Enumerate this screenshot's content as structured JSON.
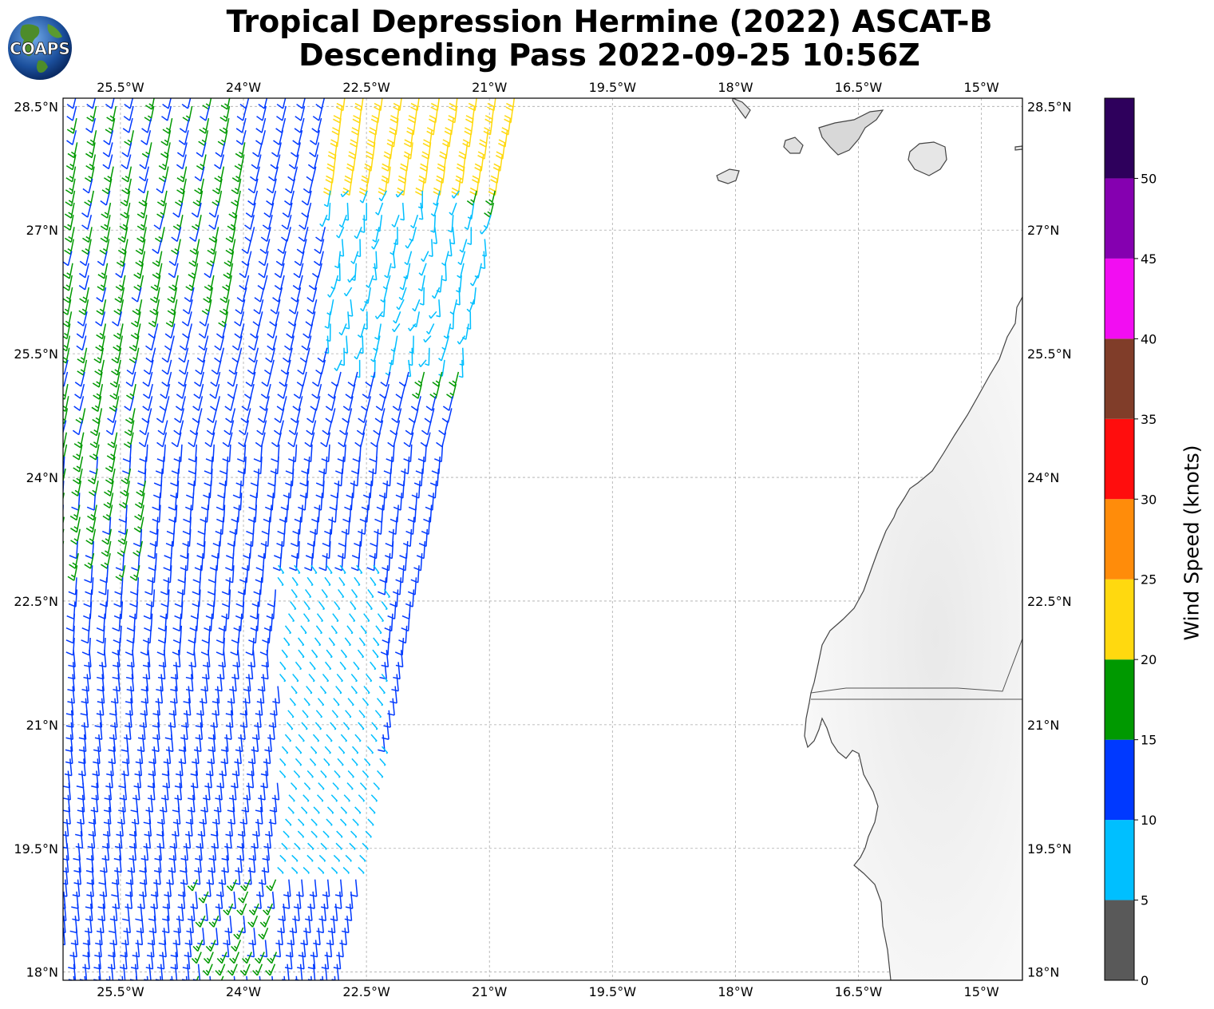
{
  "title": {
    "line1": "Tropical Depression Hermine (2022) ASCAT-B",
    "line2": "Descending Pass 2022-09-25 10:56Z"
  },
  "logo": {
    "text": "COAPS"
  },
  "map": {
    "lon_range": [
      -26.2,
      -14.5
    ],
    "lat_range": [
      17.9,
      28.6
    ],
    "lon_ticks": [
      "25.5°W",
      "24°W",
      "22.5°W",
      "21°W",
      "19.5°W",
      "18°W",
      "16.5°W",
      "15°W"
    ],
    "lon_tick_values": [
      -25.5,
      -24,
      -22.5,
      -21,
      -19.5,
      -18,
      -16.5,
      -15
    ],
    "lat_ticks": [
      "28.5°N",
      "27°N",
      "25.5°N",
      "24°N",
      "22.5°N",
      "21°N",
      "19.5°N",
      "18°N"
    ],
    "lat_tick_values": [
      28.5,
      27,
      25.5,
      24,
      22.5,
      21,
      19.5,
      18
    ],
    "grid": true,
    "land_color": "#f5f5f5",
    "coast_color": "#444444"
  },
  "colorbar": {
    "label": "Wind Speed (knots)",
    "ticks": [
      "0",
      "5",
      "10",
      "15",
      "20",
      "25",
      "30",
      "35",
      "40",
      "45",
      "50"
    ],
    "bins": [
      {
        "min": 0,
        "max": 5,
        "color": "#595959"
      },
      {
        "min": 5,
        "max": 10,
        "color": "#00bfff"
      },
      {
        "min": 10,
        "max": 15,
        "color": "#0039ff"
      },
      {
        "min": 15,
        "max": 20,
        "color": "#009900"
      },
      {
        "min": 20,
        "max": 25,
        "color": "#ffd90f"
      },
      {
        "min": 25,
        "max": 30,
        "color": "#ff8c0a"
      },
      {
        "min": 30,
        "max": 35,
        "color": "#ff0d0d"
      },
      {
        "min": 35,
        "max": 40,
        "color": "#803d29"
      },
      {
        "min": 40,
        "max": 45,
        "color": "#f20df2"
      },
      {
        "min": 45,
        "max": 50,
        "color": "#8500b0"
      },
      {
        "min": 50,
        "max": 55,
        "color": "#2e005c"
      }
    ]
  },
  "swath": {
    "description_hidden": false,
    "lon_west_edge": -26.2,
    "lon_east_edge_top": -20.7,
    "lon_east_edge_bottom": -22.5,
    "lat_top": 28.65,
    "lat_bottom": 17.95
  }
}
